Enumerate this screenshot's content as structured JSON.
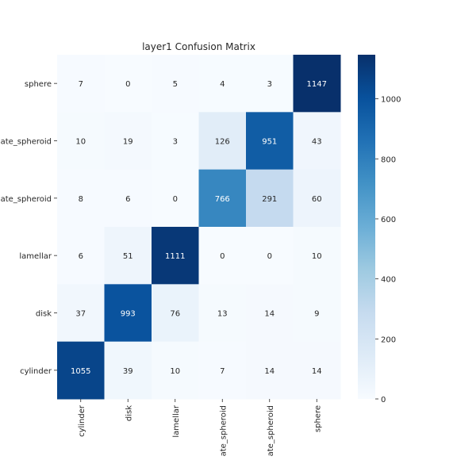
{
  "chart_data": {
    "type": "heatmap",
    "title": "layer1 Confusion Matrix",
    "xlabel": "",
    "ylabel": "",
    "x_categories": [
      "cylinder",
      "disk",
      "lamellar",
      "prolate_spheroid",
      "oblate_spheroid",
      "sphere"
    ],
    "y_categories": [
      "sphere",
      "oblate_spheroid",
      "prolate_spheroid",
      "lamellar",
      "disk",
      "cylinder"
    ],
    "values": [
      [
        7,
        0,
        5,
        4,
        3,
        1147
      ],
      [
        10,
        19,
        3,
        126,
        951,
        43
      ],
      [
        8,
        6,
        0,
        766,
        291,
        60
      ],
      [
        6,
        51,
        1111,
        0,
        0,
        10
      ],
      [
        37,
        993,
        76,
        13,
        14,
        9
      ],
      [
        1055,
        39,
        10,
        7,
        14,
        14
      ]
    ],
    "colorscale": "Blues",
    "color_low": "#f7fbff",
    "color_high": "#08306b",
    "colorbar_range": [
      0,
      1147
    ],
    "colorbar_ticks": [
      0,
      200,
      400,
      600,
      800,
      1000
    ],
    "grid": false
  }
}
